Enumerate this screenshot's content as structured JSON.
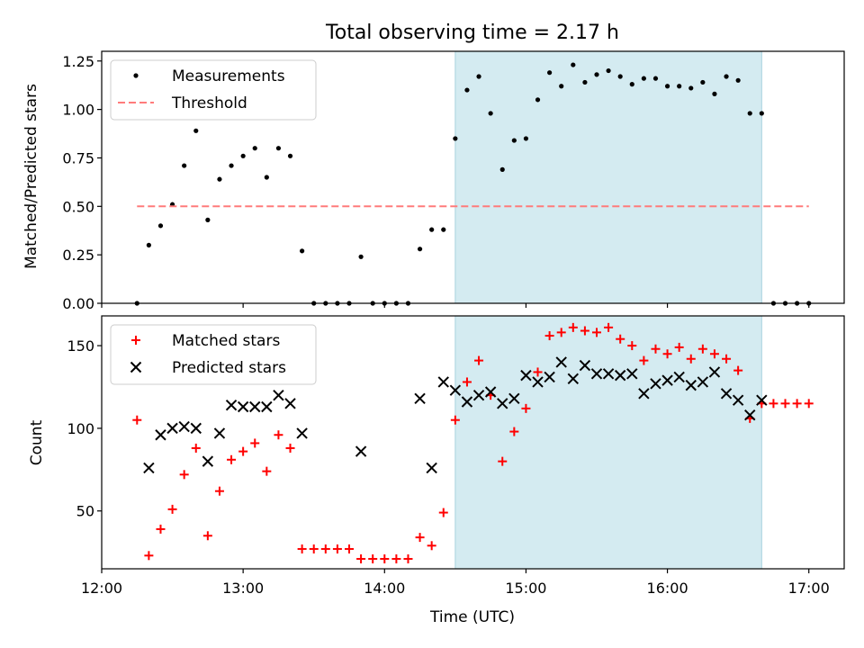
{
  "chart_data": [
    {
      "type": "scatter",
      "title": "Total observing time = 2.17 h",
      "xlabel": "",
      "ylabel": "Matched/Predicted stars",
      "xlim": [
        "12:00",
        "17:15"
      ],
      "ylim": [
        0,
        1.3
      ],
      "xticks": [
        "12:00",
        "13:00",
        "14:00",
        "15:00",
        "16:00",
        "17:00"
      ],
      "yticks": [
        "0.00",
        "0.25",
        "0.50",
        "0.75",
        "1.00",
        "1.25"
      ],
      "ytick_values": [
        0,
        0.25,
        0.5,
        0.75,
        1.0,
        1.25
      ],
      "shaded_interval": [
        "14:30",
        "16:40"
      ],
      "shade_color": "#d4ebf1",
      "legend": {
        "placement": "upper-left",
        "entries": [
          "Measurements",
          "Threshold"
        ]
      },
      "series": [
        {
          "name": "Measurements",
          "marker": "dot",
          "color": "#000000",
          "x": [
            "12:15",
            "12:20",
            "12:25",
            "12:30",
            "12:35",
            "12:40",
            "12:45",
            "12:50",
            "12:55",
            "13:00",
            "13:05",
            "13:10",
            "13:15",
            "13:20",
            "13:25",
            "13:30",
            "13:35",
            "13:40",
            "13:45",
            "13:50",
            "13:55",
            "14:00",
            "14:05",
            "14:10",
            "14:15",
            "14:20",
            "14:25",
            "14:30",
            "14:35",
            "14:40",
            "14:45",
            "14:50",
            "14:55",
            "15:00",
            "15:05",
            "15:10",
            "15:15",
            "15:20",
            "15:25",
            "15:30",
            "15:35",
            "15:40",
            "15:45",
            "15:50",
            "15:55",
            "16:00",
            "16:05",
            "16:10",
            "16:15",
            "16:20",
            "16:25",
            "16:30",
            "16:35",
            "16:40",
            "16:45",
            "16:50",
            "16:55",
            "17:00"
          ],
          "y": [
            0.0,
            0.3,
            0.4,
            0.51,
            0.71,
            0.89,
            0.43,
            0.64,
            0.71,
            0.76,
            0.8,
            0.65,
            0.8,
            0.76,
            0.27,
            0.0,
            0.0,
            0.0,
            0.0,
            0.24,
            0.0,
            0.0,
            0.0,
            0.0,
            0.28,
            0.38,
            0.38,
            0.85,
            1.1,
            1.17,
            0.98,
            0.69,
            0.84,
            0.85,
            1.05,
            1.19,
            1.12,
            1.23,
            1.14,
            1.18,
            1.2,
            1.17,
            1.13,
            1.16,
            1.16,
            1.12,
            1.12,
            1.11,
            1.14,
            1.08,
            1.17,
            1.15,
            0.98,
            0.98,
            0.0,
            0.0,
            0.0,
            0.0
          ]
        },
        {
          "name": "Threshold",
          "marker": "dashed-line",
          "color": "#ff7b7b",
          "x": [
            "12:15",
            "17:00"
          ],
          "y": [
            0.5,
            0.5
          ]
        }
      ]
    },
    {
      "type": "scatter",
      "title": "",
      "xlabel": "Time (UTC)",
      "ylabel": "Count",
      "xlim": [
        "12:00",
        "17:15"
      ],
      "ylim": [
        15,
        168
      ],
      "xticks": [
        "12:00",
        "13:00",
        "14:00",
        "15:00",
        "16:00",
        "17:00"
      ],
      "yticks": [
        "50",
        "100",
        "150"
      ],
      "ytick_values": [
        50,
        100,
        150
      ],
      "shaded_interval": [
        "14:30",
        "16:40"
      ],
      "shade_color": "#d4ebf1",
      "legend": {
        "placement": "upper-left",
        "entries": [
          "Matched stars",
          "Predicted stars"
        ]
      },
      "series": [
        {
          "name": "Matched stars",
          "marker": "plus",
          "color": "#ff0000",
          "x": [
            "12:15",
            "12:20",
            "12:25",
            "12:30",
            "12:35",
            "12:40",
            "12:45",
            "12:50",
            "12:55",
            "13:00",
            "13:05",
            "13:10",
            "13:15",
            "13:20",
            "13:25",
            "13:30",
            "13:35",
            "13:40",
            "13:45",
            "13:50",
            "13:55",
            "14:00",
            "14:05",
            "14:10",
            "14:15",
            "14:20",
            "14:25",
            "14:30",
            "14:35",
            "14:40",
            "14:45",
            "14:50",
            "14:55",
            "15:00",
            "15:05",
            "15:10",
            "15:15",
            "15:20",
            "15:25",
            "15:30",
            "15:35",
            "15:40",
            "15:45",
            "15:50",
            "15:55",
            "16:00",
            "16:05",
            "16:10",
            "16:15",
            "16:20",
            "16:25",
            "16:30",
            "16:35",
            "16:40",
            "16:45",
            "16:50",
            "16:55",
            "17:00"
          ],
          "y": [
            105,
            23,
            39,
            51,
            72,
            88,
            35,
            62,
            81,
            86,
            91,
            74,
            96,
            88,
            27,
            27,
            27,
            27,
            27,
            21,
            21,
            21,
            21,
            21,
            34,
            29,
            49,
            105,
            128,
            141,
            120,
            80,
            98,
            112,
            134,
            156,
            158,
            161,
            159,
            158,
            161,
            154,
            150,
            141,
            148,
            145,
            149,
            142,
            148,
            145,
            142,
            135,
            106,
            115,
            115,
            115,
            115,
            115
          ]
        },
        {
          "name": "Predicted stars",
          "marker": "x",
          "color": "#000000",
          "x": [
            "12:20",
            "12:25",
            "12:30",
            "12:35",
            "12:40",
            "12:45",
            "12:50",
            "12:55",
            "13:00",
            "13:05",
            "13:10",
            "13:15",
            "13:20",
            "13:25",
            "13:50",
            "14:15",
            "14:20",
            "14:25",
            "14:30",
            "14:35",
            "14:40",
            "14:45",
            "14:50",
            "14:55",
            "15:00",
            "15:05",
            "15:10",
            "15:15",
            "15:20",
            "15:25",
            "15:30",
            "15:35",
            "15:40",
            "15:45",
            "15:50",
            "15:55",
            "16:00",
            "16:05",
            "16:10",
            "16:15",
            "16:20",
            "16:25",
            "16:30",
            "16:35",
            "16:40"
          ],
          "y": [
            76,
            96,
            100,
            101,
            100,
            80,
            97,
            114,
            113,
            113,
            113,
            120,
            115,
            97,
            86,
            118,
            76,
            128,
            123,
            116,
            120,
            122,
            115,
            118,
            132,
            128,
            131,
            140,
            130,
            138,
            133,
            133,
            132,
            133,
            121,
            127,
            129,
            131,
            126,
            128,
            134,
            121,
            117,
            108,
            117
          ]
        }
      ]
    }
  ]
}
